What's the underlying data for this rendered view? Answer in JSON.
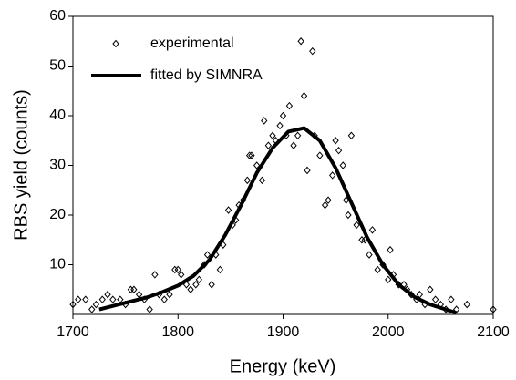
{
  "chart_data": {
    "type": "scatter",
    "xlabel": "Energy (keV)",
    "ylabel": "RBS yield (counts)",
    "xlim": [
      1700,
      2100
    ],
    "xticks": [
      1700,
      1800,
      1900,
      2000,
      2100
    ],
    "ylim": [
      0,
      60
    ],
    "yticks": [
      10,
      20,
      30,
      40,
      50,
      60
    ],
    "legend": "upper left",
    "series": [
      {
        "name": "experimental",
        "type": "scatter",
        "color": "#000000",
        "x": [
          1700,
          1705,
          1712,
          1718,
          1722,
          1728,
          1733,
          1738,
          1745,
          1750,
          1755,
          1758,
          1763,
          1768,
          1773,
          1778,
          1782,
          1787,
          1792,
          1797,
          1800,
          1803,
          1808,
          1812,
          1817,
          1820,
          1825,
          1828,
          1832,
          1836,
          1840,
          1843,
          1848,
          1852,
          1855,
          1858,
          1862,
          1866,
          1868,
          1870,
          1875,
          1880,
          1882,
          1886,
          1890,
          1893,
          1897,
          1900,
          1903,
          1906,
          1910,
          1914,
          1917,
          1920,
          1923,
          1928,
          1930,
          1935,
          1940,
          1943,
          1947,
          1950,
          1953,
          1957,
          1960,
          1962,
          1965,
          1970,
          1975,
          1978,
          1982,
          1985,
          1990,
          1995,
          2000,
          2002,
          2005,
          2010,
          2015,
          2018,
          2022,
          2027,
          2030,
          2035,
          2040,
          2045,
          2050,
          2055,
          2060,
          2065,
          2075,
          2100
        ],
        "values": [
          2,
          3,
          3,
          1,
          2,
          3,
          4,
          3,
          3,
          2,
          5,
          5,
          4,
          3,
          1,
          8,
          4,
          3,
          4,
          9,
          9,
          8,
          6,
          5,
          6,
          7,
          10,
          12,
          6,
          12,
          9,
          14,
          21,
          18,
          19,
          22,
          23,
          27,
          32,
          32,
          30,
          27,
          39,
          34,
          36,
          35,
          38,
          40,
          36,
          42,
          34,
          36,
          55,
          44,
          29,
          53,
          36,
          32,
          22,
          23,
          28,
          35,
          33,
          30,
          23,
          20,
          36,
          18,
          15,
          15,
          12,
          17,
          9,
          10,
          7,
          13,
          8,
          6,
          6,
          5,
          4,
          3,
          4,
          2,
          5,
          3,
          2,
          1,
          3,
          1,
          2,
          1
        ]
      },
      {
        "name": "fitted by SIMNRA",
        "type": "line",
        "color": "#000000",
        "x": [
          1725,
          1740,
          1755,
          1770,
          1785,
          1800,
          1815,
          1830,
          1845,
          1860,
          1875,
          1890,
          1905,
          1920,
          1935,
          1950,
          1965,
          1980,
          1995,
          2010,
          2025,
          2040,
          2055,
          2065
        ],
        "values": [
          1,
          1.8,
          2.6,
          3.4,
          4.5,
          5.8,
          7.8,
          11,
          16,
          22,
          28.5,
          33.5,
          36.8,
          37.5,
          35,
          29.5,
          22.5,
          15.5,
          10,
          6,
          3.5,
          2,
          1,
          0.3
        ]
      }
    ]
  }
}
